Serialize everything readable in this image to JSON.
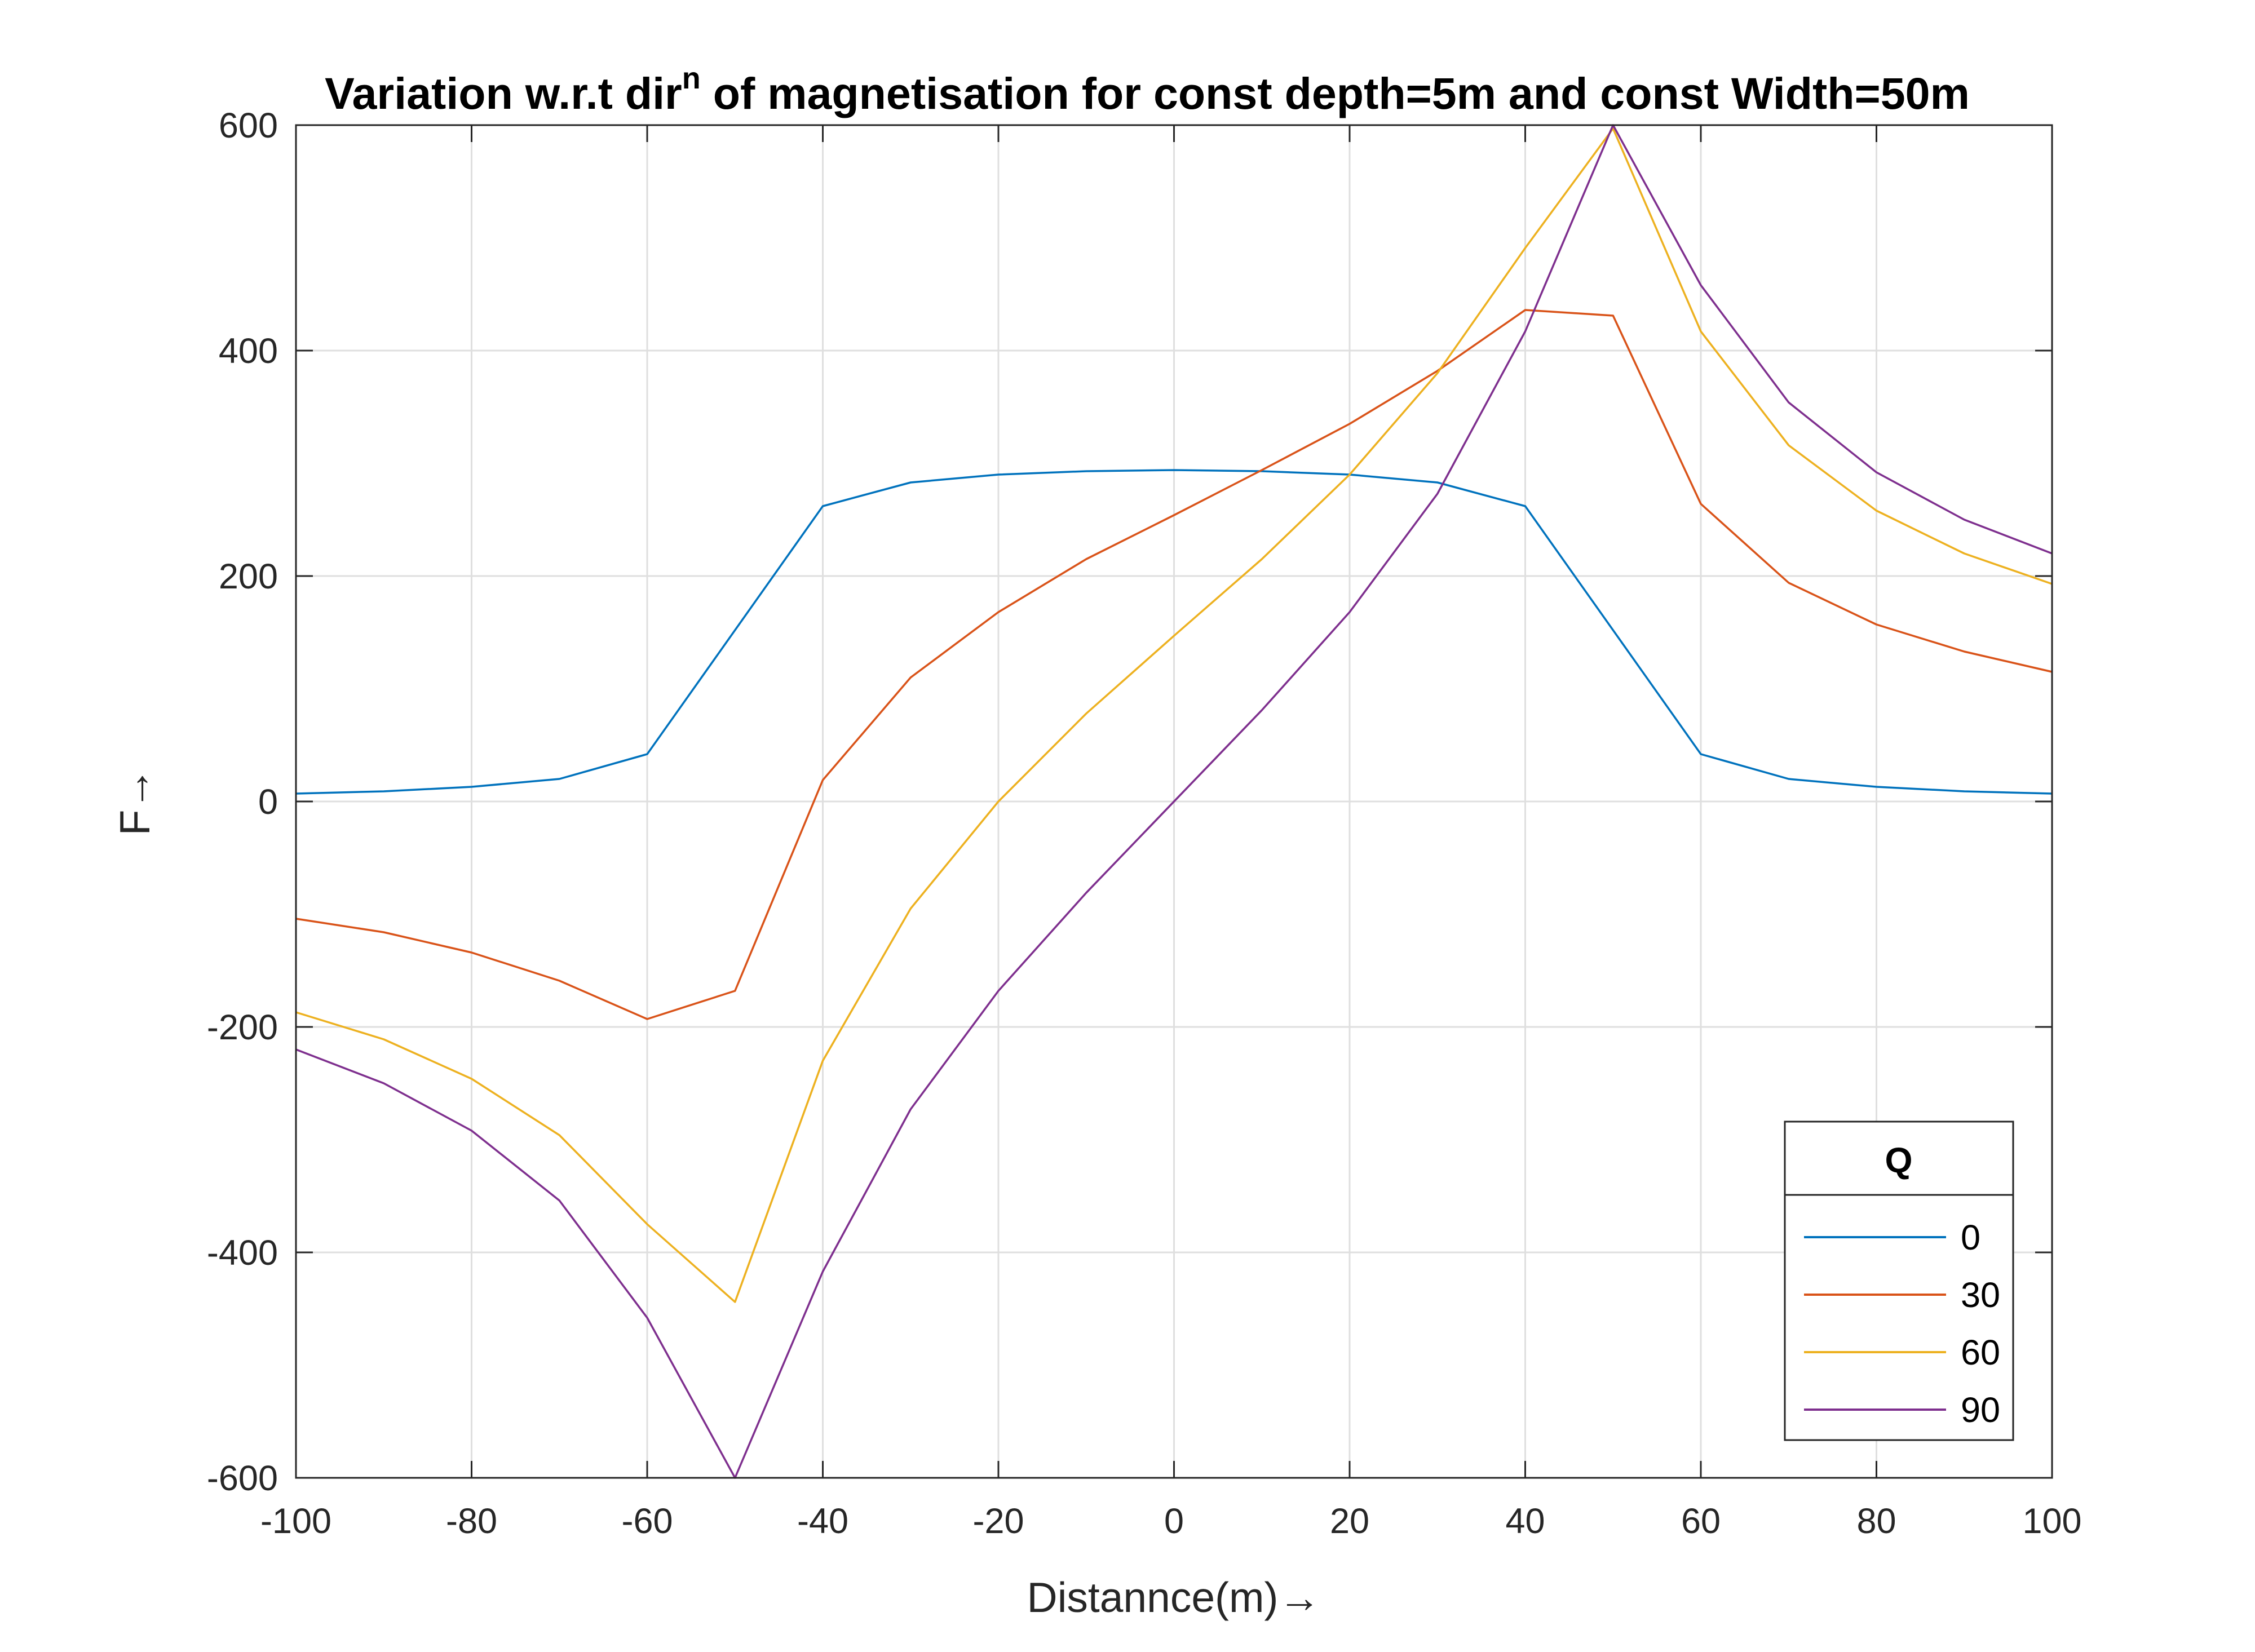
{
  "chart_data": {
    "type": "line",
    "title": "Variation w.r.t dir",
    "title_superscript": "n",
    "title_rest": " of magnetisation for const depth=5m and const Width=50m",
    "xlabel": "Distannce(m)→",
    "ylabel": "F→",
    "xlim": [
      -100,
      100
    ],
    "ylim": [
      -600,
      600
    ],
    "xticks": [
      -100,
      -80,
      -60,
      -40,
      -20,
      0,
      20,
      40,
      60,
      80,
      100
    ],
    "yticks": [
      -600,
      -400,
      -200,
      0,
      200,
      400,
      600
    ],
    "xtick_labels": [
      "-100",
      "-80",
      "-60",
      "-40",
      "-20",
      "0",
      "20",
      "40",
      "60",
      "80",
      "100"
    ],
    "ytick_labels": [
      "-600",
      "-400",
      "-200",
      "0",
      "200",
      "400",
      "600"
    ],
    "grid": true,
    "legend": {
      "title": "Q",
      "position": "bottom-right"
    },
    "x": [
      -100,
      -90,
      -80,
      -70,
      -60,
      -50,
      -40,
      -30,
      -20,
      -10,
      0,
      10,
      20,
      30,
      40,
      50,
      60,
      70,
      80,
      90,
      100
    ],
    "series": [
      {
        "name": "0",
        "color": "#0072BD",
        "values": [
          7,
          9,
          13,
          20,
          42,
          152,
          262,
          283,
          290,
          293,
          294,
          293,
          290,
          283,
          262,
          152,
          42,
          20,
          13,
          9,
          7
        ]
      },
      {
        "name": "30",
        "color": "#D95319",
        "values": [
          -104,
          -116,
          -134,
          -159,
          -193,
          -168,
          19,
          110,
          168,
          215,
          254,
          294,
          335,
          382,
          436,
          431,
          264,
          194,
          157,
          133,
          115
        ]
      },
      {
        "name": "60",
        "color": "#EDB120",
        "values": [
          -187,
          -211,
          -246,
          -296,
          -375,
          -444,
          -230,
          -95,
          0,
          78,
          147,
          215,
          290,
          380,
          491,
          597,
          417,
          316,
          258,
          220,
          193
        ]
      },
      {
        "name": "90",
        "color": "#7E2F8E",
        "values": [
          -220,
          -250,
          -292,
          -354,
          -458,
          -600,
          -417,
          -273,
          -168,
          -81,
          0,
          81,
          168,
          273,
          417,
          600,
          458,
          354,
          292,
          250,
          220
        ]
      }
    ]
  }
}
